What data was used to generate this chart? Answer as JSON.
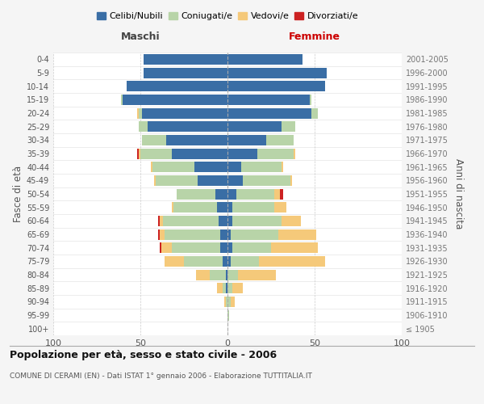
{
  "age_groups": [
    "100+",
    "95-99",
    "90-94",
    "85-89",
    "80-84",
    "75-79",
    "70-74",
    "65-69",
    "60-64",
    "55-59",
    "50-54",
    "45-49",
    "40-44",
    "35-39",
    "30-34",
    "25-29",
    "20-24",
    "15-19",
    "10-14",
    "5-9",
    "0-4"
  ],
  "birth_years": [
    "≤ 1905",
    "1906-1910",
    "1911-1915",
    "1916-1920",
    "1921-1925",
    "1926-1930",
    "1931-1935",
    "1936-1940",
    "1941-1945",
    "1946-1950",
    "1951-1955",
    "1956-1960",
    "1961-1965",
    "1966-1970",
    "1971-1975",
    "1976-1980",
    "1981-1985",
    "1986-1990",
    "1991-1995",
    "1996-2000",
    "2001-2005"
  ],
  "male": {
    "celibi": [
      0,
      0,
      0,
      1,
      1,
      3,
      4,
      4,
      5,
      6,
      7,
      17,
      19,
      32,
      35,
      46,
      49,
      60,
      58,
      48,
      48
    ],
    "coniugati": [
      0,
      0,
      1,
      2,
      9,
      22,
      28,
      32,
      32,
      25,
      22,
      24,
      24,
      18,
      14,
      5,
      2,
      1,
      0,
      0,
      0
    ],
    "vedovi": [
      0,
      0,
      1,
      3,
      8,
      11,
      6,
      3,
      2,
      1,
      0,
      1,
      1,
      1,
      0,
      0,
      1,
      0,
      0,
      0,
      0
    ],
    "divorziati": [
      0,
      0,
      0,
      0,
      0,
      0,
      1,
      1,
      1,
      0,
      0,
      0,
      0,
      1,
      0,
      0,
      0,
      0,
      0,
      0,
      0
    ]
  },
  "female": {
    "nubili": [
      0,
      0,
      0,
      0,
      0,
      2,
      3,
      2,
      3,
      3,
      5,
      9,
      8,
      17,
      22,
      31,
      48,
      47,
      56,
      57,
      43
    ],
    "coniugate": [
      0,
      1,
      2,
      3,
      6,
      16,
      22,
      27,
      28,
      24,
      22,
      27,
      23,
      21,
      16,
      8,
      4,
      1,
      0,
      0,
      0
    ],
    "vedove": [
      0,
      0,
      2,
      6,
      22,
      38,
      27,
      22,
      11,
      7,
      3,
      1,
      1,
      1,
      0,
      0,
      0,
      0,
      0,
      0,
      0
    ],
    "divorziate": [
      0,
      0,
      0,
      0,
      0,
      0,
      0,
      0,
      0,
      0,
      2,
      0,
      0,
      0,
      0,
      0,
      0,
      0,
      0,
      0,
      0
    ]
  },
  "colors": {
    "celibi": "#3A6EA5",
    "coniugati": "#B8D4A8",
    "vedovi": "#F5C97A",
    "divorziati": "#CC2222"
  },
  "xlim": 100,
  "title": "Popolazione per età, sesso e stato civile - 2006",
  "subtitle": "COMUNE DI CERAMI (EN) - Dati ISTAT 1° gennaio 2006 - Elaborazione TUTTITALIA.IT",
  "ylabel_left": "Fasce di età",
  "ylabel_right": "Anni di nascita",
  "xlabel_left": "Maschi",
  "xlabel_right": "Femmine",
  "legend_labels": [
    "Celibi/Nubili",
    "Coniugati/e",
    "Vedovi/e",
    "Divorziati/e"
  ],
  "bg_color": "#f5f5f5",
  "plot_bg": "#ffffff"
}
